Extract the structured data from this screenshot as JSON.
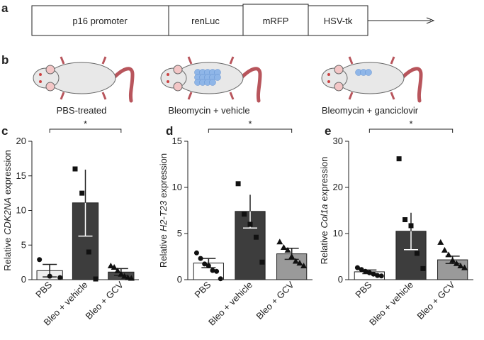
{
  "panel_labels": [
    "a",
    "b",
    "c",
    "d",
    "e"
  ],
  "construct": [
    "p16 promoter",
    "renLuc",
    "mRFP",
    "HSV-tk"
  ],
  "mice": [
    "PBS-treated",
    "Bleomycin + vehicle",
    "Bleomycin + ganciclovir"
  ],
  "chart_data": [
    {
      "type": "bar",
      "ylabel": [
        "Relative",
        "CDK2NA",
        "expression"
      ],
      "categories": [
        "PBS",
        "Bleo + vehicle",
        "Bleo + GCV"
      ],
      "values": [
        1.3,
        11.1,
        1.1
      ],
      "errors": [
        0.9,
        4.8,
        0.5
      ],
      "points": [
        [
          2.9,
          0.5,
          0.3
        ],
        [
          16,
          12.5,
          4,
          0.1
        ],
        [
          2,
          1.8,
          1.3,
          0.8,
          0.5,
          0.3,
          0.2
        ]
      ],
      "colors": [
        "#eeeeee",
        "#3d3d3d",
        "#4a4a4a"
      ],
      "markers": [
        "circle",
        "square",
        "triangle"
      ],
      "ylim": [
        0,
        20
      ],
      "yticks": [
        0,
        5,
        10,
        15,
        20
      ],
      "significance": "*"
    },
    {
      "type": "bar",
      "ylabel": [
        "Relative",
        "H2-T23",
        "expression"
      ],
      "categories": [
        "PBS",
        "Bleo + vehicle",
        "Bleo + GCV"
      ],
      "values": [
        1.8,
        7.4,
        2.8
      ],
      "errors": [
        0.5,
        1.8,
        0.6
      ],
      "points": [
        [
          2.9,
          2.3,
          1.7,
          1.5,
          1,
          0.9,
          0.1
        ],
        [
          10.4,
          7.1,
          6,
          4.6,
          1.9
        ],
        [
          4.1,
          3.5,
          3.2,
          2.5,
          2,
          1.8,
          1.5
        ]
      ],
      "colors": [
        "#ffffff",
        "#3d3d3d",
        "#9a9a9a"
      ],
      "markers": [
        "circle",
        "square",
        "triangle"
      ],
      "ylim": [
        0,
        15
      ],
      "yticks": [
        0,
        5,
        10,
        15
      ],
      "significance": "*"
    },
    {
      "type": "bar",
      "ylabel": [
        "Relative",
        "Col1a",
        "expression"
      ],
      "categories": [
        "PBS",
        "Bleo + vehicle",
        "Bleo + GCV"
      ],
      "values": [
        1.7,
        10.5,
        4.3
      ],
      "errors": [
        0.4,
        4,
        0.8
      ],
      "points": [
        [
          2.6,
          2.2,
          1.8,
          1.5,
          1.2,
          0.9,
          0.8
        ],
        [
          26.2,
          13,
          11.7,
          5.7,
          2.4
        ],
        [
          8.1,
          6.4,
          5.4,
          4.2,
          3.5,
          3,
          2.6
        ]
      ],
      "colors": [
        "#ffffff",
        "#3d3d3d",
        "#9a9a9a"
      ],
      "markers": [
        "circle",
        "square",
        "triangle"
      ],
      "ylim": [
        0,
        30
      ],
      "yticks": [
        0,
        10,
        20,
        30
      ],
      "significance": "*"
    }
  ]
}
